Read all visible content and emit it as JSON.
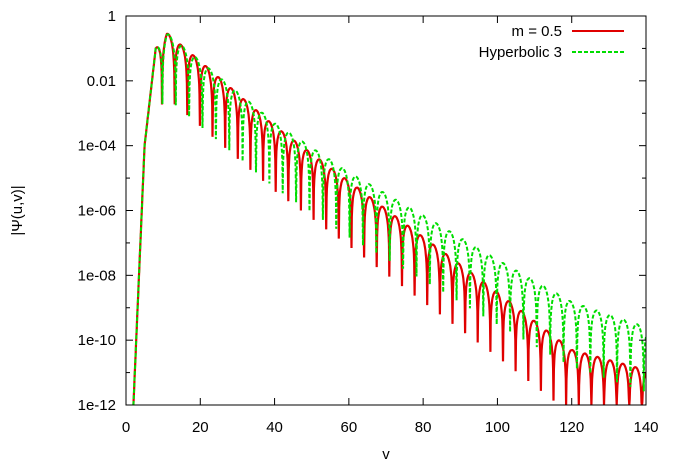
{
  "chart_data": {
    "type": "line",
    "title": "",
    "xlabel": "v",
    "ylabel": "|Ψ(u,v)|",
    "xlim": [
      0,
      140
    ],
    "ylim": [
      1e-12,
      1
    ],
    "yscale": "log",
    "grid": false,
    "legend_position": "top-right",
    "x_ticks": [
      0,
      20,
      40,
      60,
      80,
      100,
      120,
      140
    ],
    "x_tick_labels": [
      "0",
      "20",
      "40",
      "60",
      "80",
      "100",
      "120",
      "140"
    ],
    "y_ticks": [
      1,
      0.01,
      0.0001,
      1e-06,
      1e-08,
      1e-10,
      1e-12
    ],
    "y_tick_labels": [
      "1",
      "0.01",
      "1e-04",
      "1e-06",
      "1e-08",
      "1e-10",
      "1e-12"
    ],
    "series": [
      {
        "name": "m = 0.5",
        "color": "#e00000",
        "style": "solid",
        "envelope_v": [
          2,
          5,
          8,
          11,
          20,
          40,
          60,
          80,
          100,
          120,
          140
        ],
        "envelope_y": [
          1e-12,
          0.0001,
          0.1,
          0.3,
          0.04,
          0.0004,
          8e-06,
          1.5e-07,
          3e-09,
          5e-11,
          1.2e-11
        ],
        "oscillation_period_v": 3.4,
        "dip_depth_decades": 2
      },
      {
        "name": "Hyperbolic 3",
        "color": "#00dd00",
        "style": "dashed",
        "envelope_v": [
          2,
          5,
          8,
          11,
          20,
          40,
          60,
          80,
          100,
          120,
          140
        ],
        "envelope_y": [
          1e-12,
          0.0001,
          0.1,
          0.3,
          0.04,
          0.0005,
          1.5e-05,
          7e-07,
          3e-08,
          1.5e-09,
          2.5e-10
        ],
        "oscillation_period_v": 3.6,
        "dip_depth_decades": 2
      }
    ]
  }
}
